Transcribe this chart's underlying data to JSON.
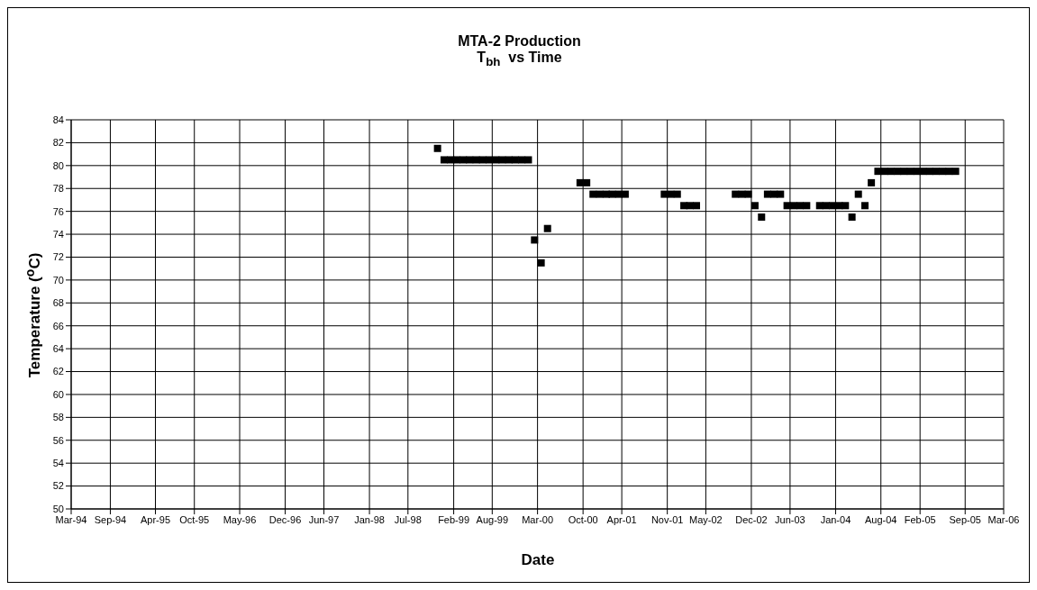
{
  "chart_data": {
    "type": "scatter",
    "title": "MTA-2 Production",
    "subtitle": "T$_{bh}$  vs Time",
    "xlabel": "Date",
    "ylabel": "Temperature ($^{o}$C)",
    "xlim": [
      "1994-03-15",
      "2006-03-15"
    ],
    "xticks": [
      {
        "value": "1994-03-15",
        "label": "Mar-94"
      },
      {
        "value": "1994-09-15",
        "label": "Sep-94"
      },
      {
        "value": "1995-04-15",
        "label": "Apr-95"
      },
      {
        "value": "1995-10-15",
        "label": "Oct-95"
      },
      {
        "value": "1996-05-15",
        "label": "May-96"
      },
      {
        "value": "1996-12-15",
        "label": "Dec-96"
      },
      {
        "value": "1997-06-15",
        "label": "Jun-97"
      },
      {
        "value": "1998-01-15",
        "label": "Jan-98"
      },
      {
        "value": "1998-07-15",
        "label": "Jul-98"
      },
      {
        "value": "1999-02-15",
        "label": "Feb-99"
      },
      {
        "value": "1999-08-15",
        "label": "Aug-99"
      },
      {
        "value": "2000-03-15",
        "label": "Mar-00"
      },
      {
        "value": "2000-10-15",
        "label": "Oct-00"
      },
      {
        "value": "2001-04-15",
        "label": "Apr-01"
      },
      {
        "value": "2001-11-15",
        "label": "Nov-01"
      },
      {
        "value": "2002-05-15",
        "label": "May-02"
      },
      {
        "value": "2002-12-15",
        "label": "Dec-02"
      },
      {
        "value": "2003-06-15",
        "label": "Jun-03"
      },
      {
        "value": "2004-01-15",
        "label": "Jan-04"
      },
      {
        "value": "2004-08-15",
        "label": "Aug-04"
      },
      {
        "value": "2005-02-15",
        "label": "Feb-05"
      },
      {
        "value": "2005-09-15",
        "label": "Sep-05"
      },
      {
        "value": "2006-03-15",
        "label": "Mar-06"
      }
    ],
    "ylim": [
      50,
      84
    ],
    "yticks": [
      50,
      52,
      54,
      56,
      58,
      60,
      62,
      64,
      66,
      68,
      70,
      72,
      74,
      76,
      78,
      80,
      82,
      84
    ],
    "grid": true,
    "marker": "square",
    "series": [
      {
        "color": "#000000",
        "x": [
          "1998-12",
          "1999-01",
          "1999-02",
          "1999-03",
          "1999-04",
          "1999-05",
          "1999-06",
          "1999-07",
          "1999-08",
          "1999-09",
          "1999-10",
          "1999-11",
          "1999-12",
          "2000-01",
          "2000-02",
          "2000-03",
          "2000-04",
          "2000-05",
          "2000-10",
          "2000-11",
          "2000-12",
          "2001-01",
          "2001-02",
          "2001-03",
          "2001-04",
          "2001-05",
          "2001-11",
          "2001-12",
          "2002-01",
          "2002-02",
          "2002-03",
          "2002-04",
          "2002-10",
          "2002-11",
          "2002-12",
          "2003-01",
          "2003-02",
          "2003-03",
          "2003-04",
          "2003-05",
          "2003-06",
          "2003-07",
          "2003-08",
          "2003-09",
          "2003-11",
          "2003-12",
          "2004-01",
          "2004-02",
          "2004-03",
          "2004-04",
          "2004-05",
          "2004-06",
          "2004-07",
          "2004-08",
          "2004-09",
          "2004-10",
          "2004-11",
          "2004-12",
          "2005-01",
          "2005-02",
          "2005-03",
          "2005-04",
          "2005-05",
          "2005-06",
          "2005-07",
          "2005-08"
        ],
        "values": [
          81.5,
          80.5,
          80.5,
          80.5,
          80.5,
          80.5,
          80.5,
          80.5,
          80.5,
          80.5,
          80.5,
          80.5,
          80.5,
          80.5,
          80.5,
          73.5,
          71.5,
          74.5,
          78.5,
          78.5,
          77.5,
          77.5,
          77.5,
          77.5,
          77.5,
          77.5,
          77.5,
          77.5,
          77.5,
          76.5,
          76.5,
          76.5,
          77.5,
          77.5,
          77.5,
          76.5,
          75.5,
          77.5,
          77.5,
          77.5,
          76.5,
          76.5,
          76.5,
          76.5,
          76.5,
          76.5,
          76.5,
          76.5,
          76.5,
          75.5,
          77.5,
          76.5,
          78.5,
          79.5,
          79.5,
          79.5,
          79.5,
          79.5,
          79.5,
          79.5,
          79.5,
          79.5,
          79.5,
          79.5,
          79.5,
          79.5
        ]
      }
    ]
  }
}
